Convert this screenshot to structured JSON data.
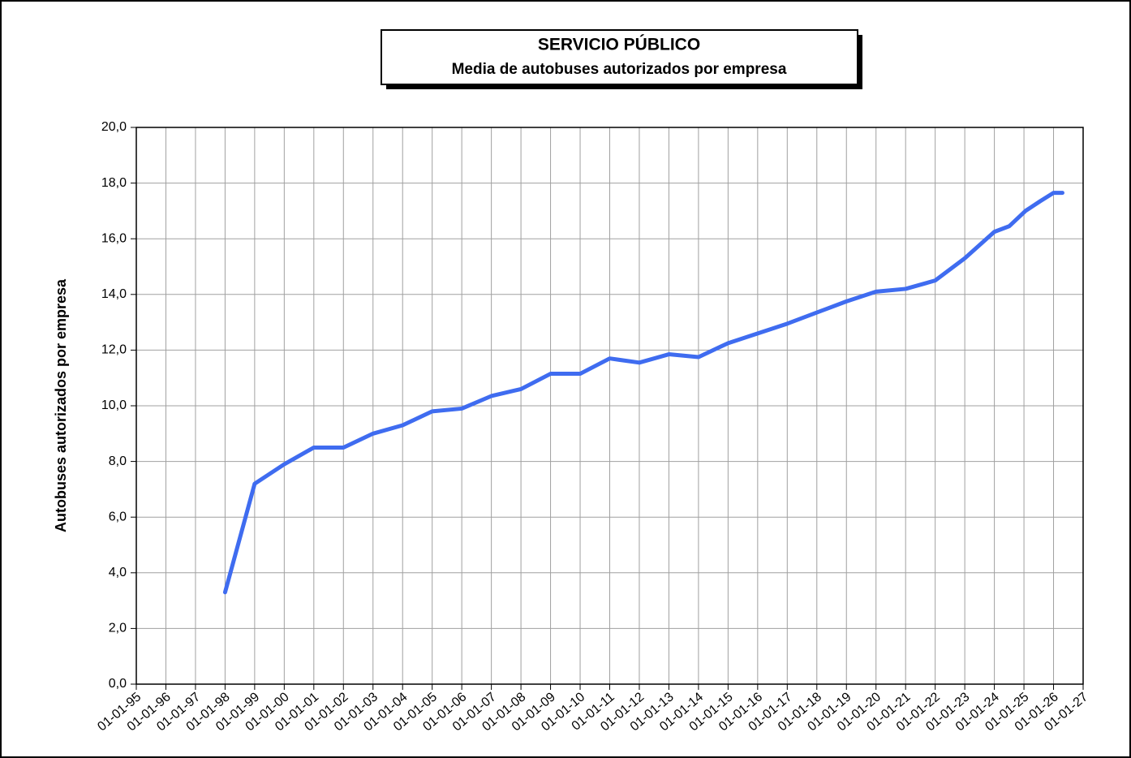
{
  "chart_data": {
    "type": "line",
    "title": "SERVICIO PÚBLICO",
    "subtitle": "Media de autobuses autorizados por empresa",
    "y_label": "Autobuses  autorizados por empresa",
    "x": [
      1998,
      1999,
      2000,
      2001,
      2002,
      2003,
      2004,
      2005,
      2006,
      2007,
      2008,
      2009,
      2010,
      2011,
      2012,
      2013,
      2014,
      2015,
      2016,
      2017,
      2018,
      2019,
      2020,
      2021,
      2022,
      2023,
      2024,
      2024.5,
      2025.05,
      2025.55,
      2026,
      2026.3
    ],
    "values": [
      3.3,
      7.2,
      7.9,
      8.5,
      8.5,
      9.0,
      9.3,
      9.8,
      9.9,
      10.35,
      10.6,
      11.15,
      11.15,
      11.7,
      11.55,
      11.85,
      11.75,
      12.25,
      12.6,
      12.95,
      13.35,
      13.75,
      14.1,
      14.2,
      14.5,
      15.3,
      16.25,
      16.45,
      17.0,
      17.35,
      17.65,
      17.65
    ],
    "color": "#3f6cf0",
    "xlim": [
      1995,
      2027
    ],
    "xticks": [
      {
        "value": 1995,
        "label": "01-01-95"
      },
      {
        "value": 1996,
        "label": "01-01-96"
      },
      {
        "value": 1997,
        "label": "01-01-97"
      },
      {
        "value": 1998,
        "label": "01-01-98"
      },
      {
        "value": 1999,
        "label": "01-01-99"
      },
      {
        "value": 2000,
        "label": "01-01-00"
      },
      {
        "value": 2001,
        "label": "01-01-01"
      },
      {
        "value": 2002,
        "label": "01-01-02"
      },
      {
        "value": 2003,
        "label": "01-01-03"
      },
      {
        "value": 2004,
        "label": "01-01-04"
      },
      {
        "value": 2005,
        "label": "01-01-05"
      },
      {
        "value": 2006,
        "label": "01-01-06"
      },
      {
        "value": 2007,
        "label": "01-01-07"
      },
      {
        "value": 2008,
        "label": "01-01-08"
      },
      {
        "value": 2009,
        "label": "01-01-09"
      },
      {
        "value": 2010,
        "label": "01-01-10"
      },
      {
        "value": 2011,
        "label": "01-01-11"
      },
      {
        "value": 2012,
        "label": "01-01-12"
      },
      {
        "value": 2013,
        "label": "01-01-13"
      },
      {
        "value": 2014,
        "label": "01-01-14"
      },
      {
        "value": 2015,
        "label": "01-01-15"
      },
      {
        "value": 2016,
        "label": "01-01-16"
      },
      {
        "value": 2017,
        "label": "01-01-17"
      },
      {
        "value": 2018,
        "label": "01-01-18"
      },
      {
        "value": 2019,
        "label": "01-01-19"
      },
      {
        "value": 2020,
        "label": "01-01-20"
      },
      {
        "value": 2021,
        "label": "01-01-21"
      },
      {
        "value": 2022,
        "label": "01-01-22"
      },
      {
        "value": 2023,
        "label": "01-01-23"
      },
      {
        "value": 2024,
        "label": "01-01-24"
      },
      {
        "value": 2025,
        "label": "01-01-25"
      },
      {
        "value": 2026,
        "label": "01-01-26"
      },
      {
        "value": 2027,
        "label": "01-01-27"
      }
    ],
    "ylim": [
      0,
      20
    ],
    "yticks": [
      {
        "value": 0,
        "label": "0,0"
      },
      {
        "value": 2,
        "label": "2,0"
      },
      {
        "value": 4,
        "label": "4,0"
      },
      {
        "value": 6,
        "label": "6,0"
      },
      {
        "value": 8,
        "label": "8,0"
      },
      {
        "value": 10,
        "label": "10,0"
      },
      {
        "value": 12,
        "label": "12,0"
      },
      {
        "value": 14,
        "label": "14,0"
      },
      {
        "value": 16,
        "label": "16,0"
      },
      {
        "value": 18,
        "label": "18,0"
      },
      {
        "value": 20,
        "label": "20,0"
      }
    ],
    "grid": true
  }
}
